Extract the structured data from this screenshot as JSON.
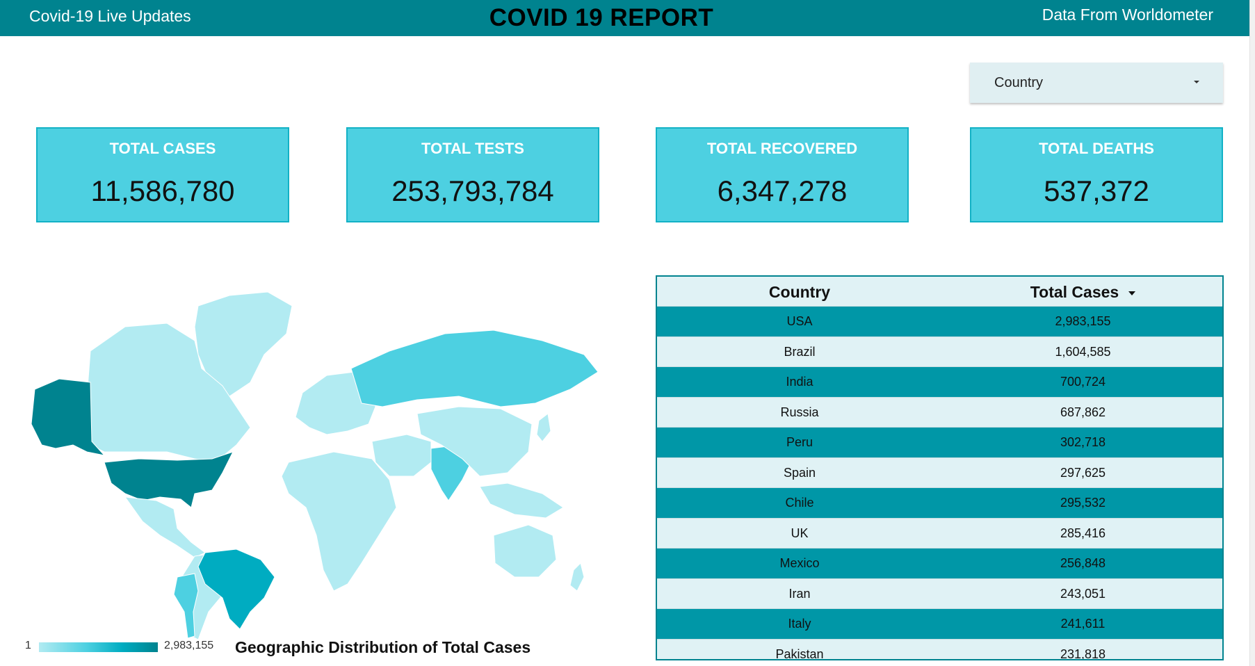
{
  "header": {
    "left_title": "Covid-19 Live Updates",
    "title": "COVID 19 REPORT",
    "right_title": "Data From Worldometer"
  },
  "filter": {
    "label": "Country"
  },
  "kpis": [
    {
      "title": "TOTAL CASES",
      "value": "11,586,780"
    },
    {
      "title": "TOTAL TESTS",
      "value": "253,793,784"
    },
    {
      "title": "TOTAL RECOVERED",
      "value": "6,347,278"
    },
    {
      "title": "TOTAL DEATHS",
      "value": "537,372"
    }
  ],
  "map": {
    "title": "Geographic Distribution of Total Cases",
    "legend_min": "1",
    "legend_max": "2,983,155",
    "colors": {
      "highest": "#00838f",
      "high": "#00acc1",
      "mid": "#4dd0e1",
      "low": "#b2ebf2",
      "nodata": "#e0e0e0"
    }
  },
  "table": {
    "columns": [
      "Country",
      "Total Cases"
    ],
    "rows": [
      [
        "USA",
        "2,983,155"
      ],
      [
        "Brazil",
        "1,604,585"
      ],
      [
        "India",
        "700,724"
      ],
      [
        "Russia",
        "687,862"
      ],
      [
        "Peru",
        "302,718"
      ],
      [
        "Spain",
        "297,625"
      ],
      [
        "Chile",
        "295,532"
      ],
      [
        "UK",
        "285,416"
      ],
      [
        "Mexico",
        "256,848"
      ],
      [
        "Iran",
        "243,051"
      ],
      [
        "Italy",
        "241,611"
      ],
      [
        "Pakistan",
        "231,818"
      ]
    ]
  }
}
